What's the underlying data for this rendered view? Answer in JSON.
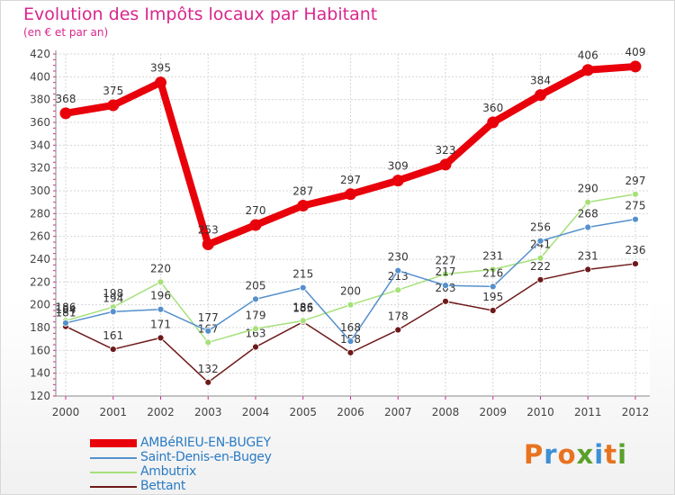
{
  "title": "Evolution des Impôts locaux par Habitant",
  "subtitle": "(en € et par an)",
  "brand": "Proxiti",
  "brand_colors": [
    "#e8731f",
    "#3d8fd6",
    "#e8731f",
    "#5aa02c",
    "#3d8fd6",
    "#e8731f",
    "#5aa02c"
  ],
  "chart_data": {
    "type": "line",
    "title": "Evolution des Impôts locaux par Habitant",
    "subtitle": "(en € et par an)",
    "xlabel": "",
    "ylabel": "",
    "ylim": [
      120,
      420
    ],
    "yticks": [
      120,
      140,
      160,
      180,
      200,
      220,
      240,
      260,
      280,
      300,
      320,
      340,
      360,
      380,
      400,
      420
    ],
    "grid": true,
    "legend_position": "bottom-left",
    "categories": [
      "2000",
      "2001",
      "2002",
      "2003",
      "2004",
      "2005",
      "2006",
      "2007",
      "2008",
      "2009",
      "2010",
      "2011",
      "2012"
    ],
    "series": [
      {
        "name": "AMBéRIEU-EN-BUGEY",
        "color": "#e8000a",
        "values": [
          368,
          375,
          395,
          253,
          270,
          287,
          297,
          309,
          323,
          360,
          384,
          406,
          409
        ]
      },
      {
        "name": "Saint-Denis-en-Bugey",
        "color": "#5590cc",
        "values": [
          184,
          194,
          196,
          177,
          205,
          215,
          168,
          230,
          217,
          216,
          256,
          268,
          275
        ]
      },
      {
        "name": "Ambutrix",
        "color": "#a6e07a",
        "values": [
          186,
          198,
          220,
          167,
          179,
          186,
          200,
          213,
          227,
          231,
          241,
          290,
          297
        ]
      },
      {
        "name": "Bettant",
        "color": "#6e1a1a",
        "values": [
          181,
          161,
          171,
          132,
          163,
          185,
          158,
          178,
          203,
          195,
          222,
          231,
          236
        ]
      }
    ]
  }
}
